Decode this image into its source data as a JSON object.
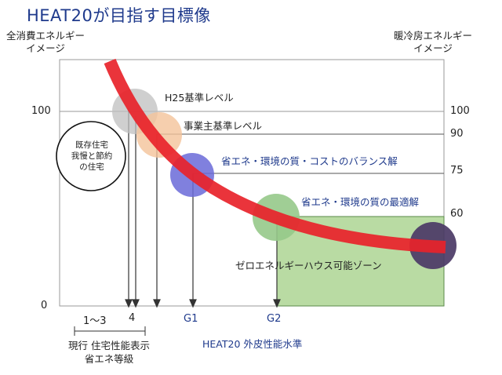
{
  "title": "HEAT20が目指す目標像",
  "axis_left": {
    "line1": "全消費エネルギー",
    "line2": "イメージ"
  },
  "axis_right": {
    "line1": "暖冷房エネルギー",
    "line2": "イメージ"
  },
  "y_ticks_left": [
    "100",
    "0"
  ],
  "y_ticks_right": [
    "100",
    "90",
    "75",
    "60"
  ],
  "x_ticks": [
    "1〜3",
    "4",
    "G1",
    "G2"
  ],
  "bottom_left": {
    "line1": "現行 住宅性能表示",
    "line2": "省エネ等級"
  },
  "bottom_center": "HEAT20 外皮性能水準",
  "existing_housing": {
    "line1": "既存住宅",
    "line2": "我慢と節約",
    "line3": "の住宅"
  },
  "labels": {
    "h25": "H25基準レベル",
    "business": "事業主基準レベル",
    "balance": "省エネ・環境の質・コストのバランス解",
    "optimal": "省エネ・環境の質の最適解",
    "zeh": "ゼロエネルギーハウス可能ゾーン"
  },
  "colors": {
    "curve": "#e8232a",
    "zone": "#b9dba3",
    "circle_h25": "#bfbfbf",
    "circle_business": "#f4c39a",
    "circle_g1": "#6a6ad8",
    "circle_g2": "#96c98a",
    "circle_zeh": "#4b3a66",
    "accent_blue": "#1f3a8c"
  }
}
